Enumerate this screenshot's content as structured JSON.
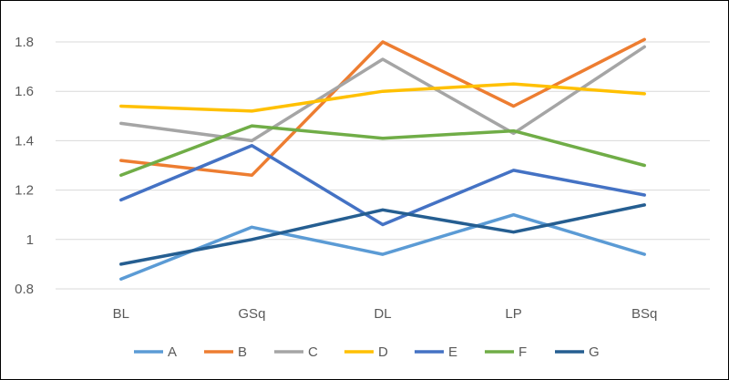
{
  "chart_data": {
    "type": "line",
    "title": "",
    "xlabel": "",
    "ylabel": "",
    "categories": [
      "BL",
      "GSq",
      "DL",
      "LP",
      "BSq"
    ],
    "ylim": [
      0.8,
      1.8
    ],
    "yticks": [
      "0.8",
      "1",
      "1.2",
      "1.4",
      "1.6",
      "1.8"
    ],
    "grid": true,
    "legend_position": "bottom",
    "series": [
      {
        "name": "A",
        "color": "#5b9bd5",
        "values": [
          0.84,
          1.05,
          0.94,
          1.1,
          0.94
        ]
      },
      {
        "name": "B",
        "color": "#ed7d31",
        "values": [
          1.32,
          1.26,
          1.8,
          1.54,
          1.81
        ]
      },
      {
        "name": "C",
        "color": "#a5a5a5",
        "values": [
          1.47,
          1.4,
          1.73,
          1.43,
          1.78
        ]
      },
      {
        "name": "D",
        "color": "#ffc000",
        "values": [
          1.54,
          1.52,
          1.6,
          1.63,
          1.59
        ]
      },
      {
        "name": "E",
        "color": "#4472c4",
        "values": [
          1.16,
          1.38,
          1.06,
          1.28,
          1.18
        ]
      },
      {
        "name": "F",
        "color": "#70ad47",
        "values": [
          1.26,
          1.46,
          1.41,
          1.44,
          1.3
        ]
      },
      {
        "name": "G",
        "color": "#255e91",
        "values": [
          0.9,
          1.0,
          1.12,
          1.03,
          1.14
        ]
      }
    ]
  }
}
